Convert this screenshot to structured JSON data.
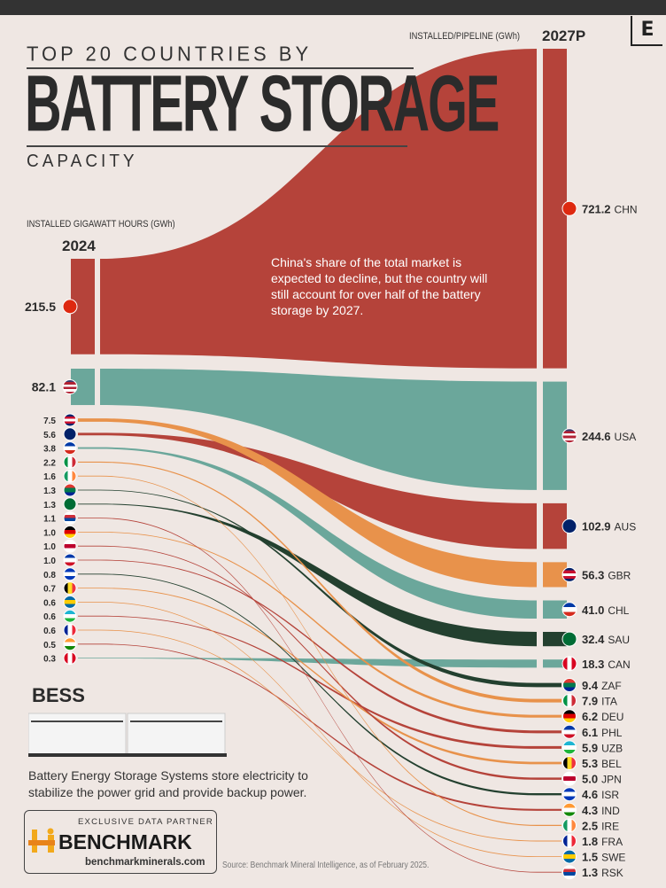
{
  "header": {
    "title_line1": "TOP 20 COUNTRIES BY",
    "title_main": "BATTERY STORAGE",
    "title_line3": "CAPACITY",
    "logo_letter": "E"
  },
  "annotation": "China's share of the total market is expected to decline, but the country will still account for over half of the battery storage by 2027.",
  "bess": {
    "title": "BESS",
    "description": "Battery Energy Storage Systems store electricity to stabilize the power grid and provide backup power."
  },
  "partner": {
    "label": "EXCLUSIVE DATA PARTNER",
    "name": "BENCHMARK",
    "url": "benchmarkminerals.com"
  },
  "source": "Source: Benchmark Mineral Intelligence, as of February 2025.",
  "chart_data": {
    "type": "sankey",
    "title": "TOP 20 COUNTRIES BY BATTERY STORAGE CAPACITY",
    "left_label": "INSTALLED GIGAWATT HOURS (GWh)",
    "left_year": "2024",
    "right_label": "INSTALLED/PIPELINE (GWh)",
    "right_year": "2027P",
    "colors": {
      "red": "#b5433a",
      "teal": "#6ba79b",
      "orange": "#e8924b",
      "dark": "#23402f"
    },
    "left_order": [
      "CHN",
      "USA",
      "GBR",
      "AUS",
      "CHL",
      "ITA",
      "IRE",
      "ZAF",
      "SAU",
      "RSK",
      "DEU",
      "JPN",
      "PHL",
      "ISR",
      "BEL",
      "SWE",
      "UZB",
      "FRA",
      "IND",
      "CAN"
    ],
    "right_order": [
      "CHN",
      "USA",
      "AUS",
      "GBR",
      "CHL",
      "SAU",
      "CAN",
      "ZAF",
      "ITA",
      "DEU",
      "PHL",
      "UZB",
      "BEL",
      "JPN",
      "ISR",
      "IND",
      "IRE",
      "FRA",
      "SWE",
      "RSK"
    ],
    "countries": {
      "CHN": {
        "v2024": "215.5",
        "v2027": "721.2",
        "color": "red",
        "flag": {
          "dir": "v",
          "c": [
            "#de2910"
          ]
        }
      },
      "USA": {
        "v2024": "82.1",
        "v2027": "244.6",
        "color": "teal",
        "flag": {
          "dir": "h",
          "c": [
            "#3c3b6e",
            "#b22234",
            "#ffffff",
            "#b22234",
            "#ffffff",
            "#b22234"
          ]
        }
      },
      "GBR": {
        "v2024": "7.5",
        "v2027": "56.3",
        "color": "orange",
        "flag": {
          "dir": "h",
          "c": [
            "#012169",
            "#c8102e",
            "#ffffff",
            "#c8102e",
            "#012169"
          ]
        }
      },
      "AUS": {
        "v2024": "5.6",
        "v2027": "102.9",
        "color": "red",
        "flag": {
          "dir": "v",
          "c": [
            "#012169"
          ]
        }
      },
      "CHL": {
        "v2024": "3.8",
        "v2027": "41.0",
        "color": "teal",
        "flag": {
          "dir": "h",
          "c": [
            "#0039a6",
            "#ffffff",
            "#d52b1e"
          ]
        }
      },
      "ITA": {
        "v2024": "2.2",
        "v2027": "7.9",
        "color": "orange",
        "flag": {
          "dir": "v",
          "c": [
            "#009246",
            "#ffffff",
            "#ce2b37"
          ]
        }
      },
      "IRE": {
        "v2024": "1.6",
        "v2027": "2.5",
        "color": "orange",
        "flag": {
          "dir": "v",
          "c": [
            "#169b62",
            "#ffffff",
            "#ff883e"
          ]
        }
      },
      "ZAF": {
        "v2024": "1.3",
        "v2027": "9.4",
        "color": "dark",
        "flag": {
          "dir": "h",
          "c": [
            "#de3831",
            "#007a4d",
            "#002395"
          ]
        }
      },
      "SAU": {
        "v2024": "1.3",
        "v2027": "32.4",
        "color": "dark",
        "flag": {
          "dir": "v",
          "c": [
            "#006c35"
          ]
        }
      },
      "RSK": {
        "v2024": "1.1",
        "v2027": "1.3",
        "color": "red",
        "flag": {
          "dir": "h",
          "c": [
            "#ffffff",
            "#cd2e3a",
            "#0047a0",
            "#ffffff"
          ]
        }
      },
      "DEU": {
        "v2024": "1.0",
        "v2027": "6.2",
        "color": "orange",
        "flag": {
          "dir": "h",
          "c": [
            "#000000",
            "#dd0000",
            "#ffce00"
          ]
        }
      },
      "JPN": {
        "v2024": "1.0",
        "v2027": "5.0",
        "color": "red",
        "flag": {
          "dir": "h",
          "c": [
            "#ffffff",
            "#bc002d",
            "#ffffff"
          ]
        }
      },
      "PHL": {
        "v2024": "1.0",
        "v2027": "6.1",
        "color": "red",
        "flag": {
          "dir": "h",
          "c": [
            "#0038a8",
            "#ffffff",
            "#ce1126"
          ]
        }
      },
      "ISR": {
        "v2024": "0.8",
        "v2027": "4.6",
        "color": "dark",
        "flag": {
          "dir": "h",
          "c": [
            "#0038b8",
            "#ffffff",
            "#0038b8"
          ]
        }
      },
      "BEL": {
        "v2024": "0.7",
        "v2027": "5.3",
        "color": "orange",
        "flag": {
          "dir": "v",
          "c": [
            "#000000",
            "#fdda24",
            "#ef3340"
          ]
        }
      },
      "SWE": {
        "v2024": "0.6",
        "v2027": "1.5",
        "color": "orange",
        "flag": {
          "dir": "h",
          "c": [
            "#006aa7",
            "#fecc00",
            "#006aa7"
          ]
        }
      },
      "UZB": {
        "v2024": "0.6",
        "v2027": "5.9",
        "color": "red",
        "flag": {
          "dir": "h",
          "c": [
            "#1eb5d2",
            "#ffffff",
            "#1eb53a"
          ]
        }
      },
      "FRA": {
        "v2024": "0.6",
        "v2027": "1.8",
        "color": "orange",
        "flag": {
          "dir": "v",
          "c": [
            "#002395",
            "#ffffff",
            "#ed2939"
          ]
        }
      },
      "IND": {
        "v2024": "0.5",
        "v2027": "4.3",
        "color": "red",
        "flag": {
          "dir": "h",
          "c": [
            "#ff9933",
            "#ffffff",
            "#138808"
          ]
        }
      },
      "CAN": {
        "v2024": "0.3",
        "v2027": "18.3",
        "color": "teal",
        "flag": {
          "dir": "v",
          "c": [
            "#d80621",
            "#ffffff",
            "#d80621"
          ]
        }
      }
    }
  }
}
